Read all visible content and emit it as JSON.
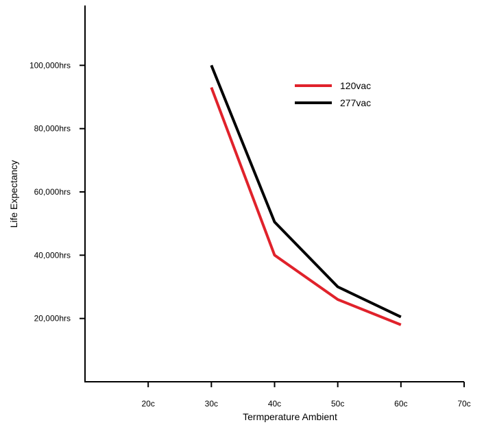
{
  "chart_data": {
    "type": "line",
    "title": "",
    "xlabel": "Termperature Ambient",
    "ylabel": "Life Expectancy",
    "x_ticks": [
      {
        "value": 20,
        "label": "20c"
      },
      {
        "value": 30,
        "label": "30c"
      },
      {
        "value": 40,
        "label": "40c"
      },
      {
        "value": 50,
        "label": "50c"
      },
      {
        "value": 60,
        "label": "60c"
      },
      {
        "value": 70,
        "label": "70c"
      }
    ],
    "y_ticks": [
      {
        "value": 20000,
        "label": "20,000hrs"
      },
      {
        "value": 40000,
        "label": "40,000hrs"
      },
      {
        "value": 60000,
        "label": "60,000hrs"
      },
      {
        "value": 80000,
        "label": "80,000hrs"
      },
      {
        "value": 100000,
        "label": "100,000hrs"
      }
    ],
    "xlim": [
      10,
      70
    ],
    "ylim": [
      0,
      120000
    ],
    "grid": false,
    "legend_position": "top-right",
    "series": [
      {
        "name": "120vac",
        "color": "#e0222b",
        "x": [
          30,
          40,
          50,
          60
        ],
        "y": [
          93000,
          40000,
          26000,
          18000
        ]
      },
      {
        "name": "277vac",
        "color": "#000000",
        "x": [
          30,
          40,
          50,
          60
        ],
        "y": [
          100000,
          50500,
          30000,
          20500
        ]
      }
    ]
  }
}
